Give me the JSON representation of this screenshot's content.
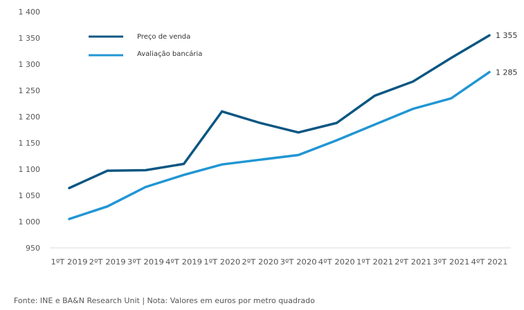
{
  "chart_data": {
    "type": "line",
    "title": "",
    "xlabel": "",
    "ylabel": "",
    "ylim": [
      950,
      1400
    ],
    "yticks": [
      950,
      1000,
      1050,
      1100,
      1150,
      1200,
      1250,
      1300,
      1350,
      1400
    ],
    "ytick_labels": [
      "950",
      "1 000",
      "1 050",
      "1 100",
      "1 150",
      "1 200",
      "1 250",
      "1 300",
      "1 350",
      "1 400"
    ],
    "categories": [
      "1ºT 2019",
      "2ºT 2019",
      "3ºT 2019",
      "4ºT 2019",
      "1ºT 2020",
      "2ºT 2020",
      "3ºT 2020",
      "4ºT 2020",
      "1ºT 2021",
      "2ºT 2021",
      "3ºT 2021",
      "4ºT 2021"
    ],
    "grid": false,
    "legend_position": "top-left",
    "series": [
      {
        "name": "Preço de venda",
        "color": "#0b5682",
        "values": [
          1064,
          1097,
          1098,
          1110,
          1210,
          1188,
          1170,
          1188,
          1240,
          1267,
          1312,
          1355
        ],
        "end_label": "1 355"
      },
      {
        "name": "Avaliação bancária",
        "color": "#2196d3",
        "values": [
          1005,
          1029,
          1066,
          1089,
          1109,
          1118,
          1127,
          1155,
          1185,
          1215,
          1235,
          1285
        ],
        "end_label": "1 285"
      }
    ]
  },
  "footnote": "Fonte: INE e BA&N Research Unit | Nota: Valores em euros por metro quadrado"
}
